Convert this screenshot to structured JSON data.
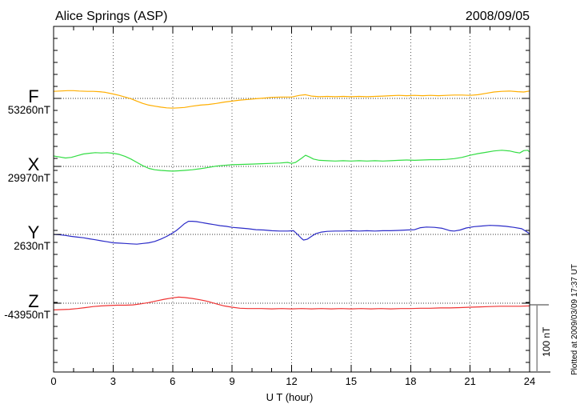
{
  "header": {
    "title": "Alice Springs (ASP)",
    "date": "2008/09/05"
  },
  "axis": {
    "xlabel": "U T (hour)",
    "x_ticks": [
      "0",
      "3",
      "6",
      "9",
      "12",
      "15",
      "18",
      "21",
      "24"
    ]
  },
  "scale_bar": {
    "label": "100 nT",
    "color": "#888888"
  },
  "footer": {
    "plotted_at": "Plotted at 2009/03/09 17:37 UT"
  },
  "channels": [
    {
      "label": "F",
      "value_label": "53260nT",
      "color": "#FFAE00"
    },
    {
      "label": "X",
      "value_label": "29970nT",
      "color": "#33DD44"
    },
    {
      "label": "Y",
      "value_label": "2630nT",
      "color": "#2B2BC8"
    },
    {
      "label": "Z",
      "value_label": "-43950nT",
      "color": "#EF3333"
    }
  ],
  "chart_data": {
    "type": "line",
    "title": "Alice Springs (ASP) magnetogram",
    "date": "2008/09/05",
    "xlabel": "U T (hour)",
    "x_range": [
      0,
      24
    ],
    "x_tick_step": 3,
    "grid": "dotted vertical lines every 3 hours, dotted horizontal baseline per trace",
    "scale_bar_nT": 100,
    "legend_position": "left margin, one colored letter per trace",
    "series": [
      {
        "name": "F",
        "base_value_nT": 53260,
        "color": "#FFAE00",
        "points": [
          [
            0,
            10.5
          ],
          [
            0.3,
            11
          ],
          [
            0.7,
            11.5
          ],
          [
            1,
            11.5
          ],
          [
            1.3,
            11
          ],
          [
            1.7,
            10.5
          ],
          [
            2,
            10.5
          ],
          [
            2.3,
            10
          ],
          [
            2.6,
            9
          ],
          [
            3,
            6.5
          ],
          [
            3.3,
            4.5
          ],
          [
            3.6,
            2
          ],
          [
            3.9,
            -0.5
          ],
          [
            4.2,
            -4
          ],
          [
            4.5,
            -7.5
          ],
          [
            4.8,
            -10
          ],
          [
            5.1,
            -11.5
          ],
          [
            5.4,
            -13
          ],
          [
            5.7,
            -14
          ],
          [
            6,
            -14.5
          ],
          [
            6.3,
            -14
          ],
          [
            6.6,
            -13.5
          ],
          [
            7,
            -11.5
          ],
          [
            7.4,
            -10
          ],
          [
            7.8,
            -9
          ],
          [
            8.2,
            -7.5
          ],
          [
            8.6,
            -5.5
          ],
          [
            9,
            -4
          ],
          [
            9.4,
            -2.5
          ],
          [
            9.8,
            -1.5
          ],
          [
            10.2,
            -0.5
          ],
          [
            10.6,
            0.5
          ],
          [
            11,
            1.5
          ],
          [
            11.5,
            2
          ],
          [
            12,
            2
          ],
          [
            12.4,
            4.5
          ],
          [
            12.7,
            5.5
          ],
          [
            13,
            3.5
          ],
          [
            13.4,
            2.5
          ],
          [
            13.8,
            3
          ],
          [
            14.2,
            2.5
          ],
          [
            14.6,
            3
          ],
          [
            15,
            2.5
          ],
          [
            15.4,
            3
          ],
          [
            15.8,
            2.5
          ],
          [
            16.2,
            3
          ],
          [
            16.6,
            3.5
          ],
          [
            17,
            4
          ],
          [
            17.4,
            4.5
          ],
          [
            17.8,
            4
          ],
          [
            18.2,
            4.5
          ],
          [
            18.6,
            4
          ],
          [
            19,
            4.5
          ],
          [
            19.4,
            4
          ],
          [
            19.8,
            4.5
          ],
          [
            20.2,
            5
          ],
          [
            20.6,
            5
          ],
          [
            21,
            4.5
          ],
          [
            21.4,
            5.5
          ],
          [
            21.8,
            7.5
          ],
          [
            22.2,
            9.5
          ],
          [
            22.6,
            10.5
          ],
          [
            23,
            11
          ],
          [
            23.4,
            10
          ],
          [
            23.7,
            9.5
          ],
          [
            24,
            11
          ]
        ]
      },
      {
        "name": "X",
        "base_value_nT": 29970,
        "color": "#33DD44",
        "points": [
          [
            0,
            15.5
          ],
          [
            0.3,
            14
          ],
          [
            0.6,
            12.5
          ],
          [
            0.9,
            13.5
          ],
          [
            1.2,
            16
          ],
          [
            1.5,
            18.5
          ],
          [
            1.8,
            19.5
          ],
          [
            2.1,
            20.5
          ],
          [
            2.4,
            20
          ],
          [
            2.7,
            20.5
          ],
          [
            3,
            19.5
          ],
          [
            3.3,
            18
          ],
          [
            3.6,
            15
          ],
          [
            3.9,
            11
          ],
          [
            4.2,
            6
          ],
          [
            4.5,
            1
          ],
          [
            4.8,
            -3
          ],
          [
            5.1,
            -5
          ],
          [
            5.4,
            -6
          ],
          [
            5.7,
            -6.5
          ],
          [
            6,
            -7
          ],
          [
            6.3,
            -6.5
          ],
          [
            6.6,
            -6
          ],
          [
            7,
            -5
          ],
          [
            7.4,
            -3.5
          ],
          [
            7.8,
            -1.5
          ],
          [
            8.2,
            0.5
          ],
          [
            8.6,
            1.5
          ],
          [
            9,
            2.5
          ],
          [
            9.5,
            3
          ],
          [
            10,
            3.5
          ],
          [
            10.5,
            4
          ],
          [
            11,
            4.5
          ],
          [
            11.4,
            5
          ],
          [
            11.8,
            6
          ],
          [
            12,
            4.5
          ],
          [
            12.2,
            6
          ],
          [
            12.5,
            12
          ],
          [
            12.7,
            16.5
          ],
          [
            12.9,
            14
          ],
          [
            13.1,
            11
          ],
          [
            13.4,
            9
          ],
          [
            13.8,
            8.5
          ],
          [
            14.2,
            8
          ],
          [
            14.6,
            8.5
          ],
          [
            15,
            8
          ],
          [
            15.4,
            8.5
          ],
          [
            15.8,
            8
          ],
          [
            16.2,
            8.5
          ],
          [
            16.6,
            8
          ],
          [
            17,
            8.5
          ],
          [
            17.4,
            9
          ],
          [
            17.8,
            9.5
          ],
          [
            18.2,
            9
          ],
          [
            18.6,
            9.5
          ],
          [
            19,
            10
          ],
          [
            19.4,
            10
          ],
          [
            19.8,
            10.5
          ],
          [
            20.2,
            11.5
          ],
          [
            20.6,
            13.5
          ],
          [
            21,
            16.5
          ],
          [
            21.4,
            19
          ],
          [
            21.8,
            21
          ],
          [
            22.2,
            23
          ],
          [
            22.6,
            24
          ],
          [
            23,
            23
          ],
          [
            23.3,
            21
          ],
          [
            23.5,
            20
          ],
          [
            23.7,
            23.5
          ],
          [
            23.9,
            24
          ],
          [
            24,
            21.5
          ]
        ]
      },
      {
        "name": "Y",
        "base_value_nT": 2630,
        "color": "#2B2BC8",
        "points": [
          [
            0,
            0
          ],
          [
            0.3,
            -0.5
          ],
          [
            0.6,
            -1.5
          ],
          [
            0.9,
            -3
          ],
          [
            1.2,
            -4
          ],
          [
            1.5,
            -5
          ],
          [
            1.8,
            -6.5
          ],
          [
            2.1,
            -8
          ],
          [
            2.4,
            -9.5
          ],
          [
            2.7,
            -11
          ],
          [
            3,
            -12.5
          ],
          [
            3.3,
            -13
          ],
          [
            3.6,
            -13.5
          ],
          [
            3.9,
            -14
          ],
          [
            4.2,
            -14.5
          ],
          [
            4.5,
            -13.5
          ],
          [
            4.8,
            -12.5
          ],
          [
            5.1,
            -10.5
          ],
          [
            5.4,
            -7
          ],
          [
            5.7,
            -3
          ],
          [
            6,
            2
          ],
          [
            6.2,
            6
          ],
          [
            6.4,
            11
          ],
          [
            6.6,
            16
          ],
          [
            6.8,
            19.5
          ],
          [
            7,
            19.5
          ],
          [
            7.2,
            19
          ],
          [
            7.5,
            17.5
          ],
          [
            7.8,
            16
          ],
          [
            8.1,
            14.5
          ],
          [
            8.4,
            13
          ],
          [
            8.7,
            12
          ],
          [
            9,
            10.5
          ],
          [
            9.4,
            9.5
          ],
          [
            9.8,
            8.5
          ],
          [
            10.2,
            7
          ],
          [
            10.6,
            6.5
          ],
          [
            11,
            5.5
          ],
          [
            11.4,
            5
          ],
          [
            11.8,
            5
          ],
          [
            12.1,
            5.5
          ],
          [
            12.3,
            0
          ],
          [
            12.5,
            -6
          ],
          [
            12.6,
            -8.5
          ],
          [
            12.8,
            -7
          ],
          [
            13,
            -3
          ],
          [
            13.2,
            1
          ],
          [
            13.5,
            3.5
          ],
          [
            13.8,
            4.5
          ],
          [
            14.2,
            5
          ],
          [
            14.6,
            5
          ],
          [
            15,
            5.5
          ],
          [
            15.4,
            5
          ],
          [
            15.8,
            5.5
          ],
          [
            16.2,
            5
          ],
          [
            16.6,
            5.5
          ],
          [
            17,
            5.5
          ],
          [
            17.4,
            6
          ],
          [
            17.8,
            6.5
          ],
          [
            18.2,
            7
          ],
          [
            18.5,
            10
          ],
          [
            18.8,
            11
          ],
          [
            19.2,
            10.5
          ],
          [
            19.6,
            9
          ],
          [
            20,
            5.5
          ],
          [
            20.2,
            5
          ],
          [
            20.5,
            6.5
          ],
          [
            20.8,
            9.5
          ],
          [
            21.2,
            11.5
          ],
          [
            21.6,
            12.5
          ],
          [
            22,
            13.5
          ],
          [
            22.4,
            13
          ],
          [
            22.8,
            12
          ],
          [
            23.2,
            10.5
          ],
          [
            23.6,
            8.5
          ],
          [
            23.8,
            5
          ],
          [
            24,
            1
          ]
        ]
      },
      {
        "name": "Z",
        "base_value_nT": -43950,
        "color": "#EF3333",
        "points": [
          [
            0,
            -10
          ],
          [
            0.4,
            -9.5
          ],
          [
            0.8,
            -9
          ],
          [
            1.2,
            -8
          ],
          [
            1.6,
            -6.5
          ],
          [
            2,
            -5
          ],
          [
            2.4,
            -4
          ],
          [
            2.8,
            -3.5
          ],
          [
            3.2,
            -3
          ],
          [
            3.6,
            -3
          ],
          [
            4,
            -2.5
          ],
          [
            4.4,
            -1
          ],
          [
            4.8,
            1
          ],
          [
            5.2,
            3.5
          ],
          [
            5.6,
            6
          ],
          [
            6,
            8
          ],
          [
            6.3,
            9
          ],
          [
            6.6,
            8.5
          ],
          [
            7,
            7
          ],
          [
            7.4,
            5
          ],
          [
            7.8,
            2.5
          ],
          [
            8.2,
            -1
          ],
          [
            8.6,
            -4
          ],
          [
            9,
            -6
          ],
          [
            9.4,
            -7.5
          ],
          [
            9.8,
            -8
          ],
          [
            10.5,
            -8
          ],
          [
            11,
            -8.5
          ],
          [
            11.5,
            -8
          ],
          [
            12,
            -8.5
          ],
          [
            12.5,
            -8
          ],
          [
            13,
            -8.5
          ],
          [
            13.5,
            -8
          ],
          [
            14,
            -8.5
          ],
          [
            14.5,
            -8
          ],
          [
            15,
            -8.5
          ],
          [
            15.5,
            -8
          ],
          [
            16,
            -8.5
          ],
          [
            16.5,
            -8
          ],
          [
            17,
            -8.5
          ],
          [
            17.5,
            -8
          ],
          [
            18,
            -8
          ],
          [
            18.5,
            -7.5
          ],
          [
            19,
            -7.5
          ],
          [
            19.5,
            -7
          ],
          [
            20,
            -7
          ],
          [
            20.5,
            -6.5
          ],
          [
            21,
            -6
          ],
          [
            21.5,
            -5.5
          ],
          [
            22,
            -5
          ],
          [
            22.5,
            -4.5
          ],
          [
            23,
            -4.5
          ],
          [
            23.5,
            -4.5
          ],
          [
            24,
            -4
          ]
        ]
      }
    ]
  }
}
